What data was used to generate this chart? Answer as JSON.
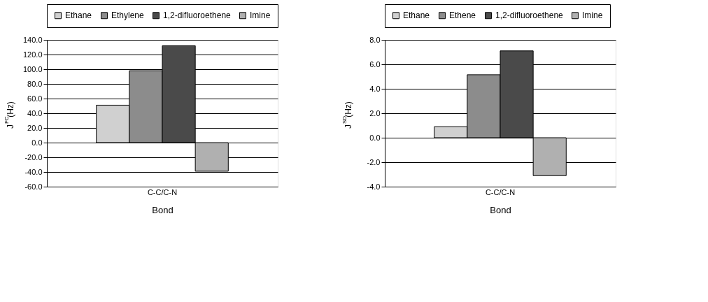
{
  "chart_data": [
    {
      "type": "bar",
      "categories": [
        "C-C/C-N"
      ],
      "xlabel": "Bond",
      "ylabel": "J$^{FC}$(Hz)",
      "ylim": [
        -60,
        140
      ],
      "yticks": [
        {
          "value": -60,
          "label": "-60.0"
        },
        {
          "value": -40,
          "label": "-40.0"
        },
        {
          "value": -20,
          "label": "-20.0"
        },
        {
          "value": 0,
          "label": "0.0"
        },
        {
          "value": 20,
          "label": "20.0"
        },
        {
          "value": 40,
          "label": "40.0"
        },
        {
          "value": 60,
          "label": "60.0"
        },
        {
          "value": 80,
          "label": "80.0"
        },
        {
          "value": 100,
          "label": "100.0"
        },
        {
          "value": 120,
          "label": "120.0"
        },
        {
          "value": 140,
          "label": "140.0"
        }
      ],
      "grid": "y",
      "legend": "top",
      "series": [
        {
          "name": "Ethane",
          "color": "#d0d0d0",
          "values": [
            51
          ]
        },
        {
          "name": "Ethylene",
          "color": "#8c8c8c",
          "values": [
            98
          ]
        },
        {
          "name": "1,2-difluoroethene",
          "color": "#4a4a4a",
          "values": [
            132
          ]
        },
        {
          "name": "Imine",
          "color": "#b0b0b0",
          "values": [
            -39
          ]
        }
      ]
    },
    {
      "type": "bar",
      "categories": [
        "C-C/C-N"
      ],
      "xlabel": "Bond",
      "ylabel": "J$^{SD}$(Hz)",
      "ylim": [
        -4,
        8
      ],
      "yticks": [
        {
          "value": -4,
          "label": "-4.0"
        },
        {
          "value": -2,
          "label": "-2.0"
        },
        {
          "value": 0,
          "label": "0.0"
        },
        {
          "value": 2,
          "label": "2.0"
        },
        {
          "value": 4,
          "label": "4.0"
        },
        {
          "value": 6,
          "label": "6.0"
        },
        {
          "value": 8,
          "label": "8.0"
        }
      ],
      "grid": "y",
      "legend": "top",
      "series": [
        {
          "name": "Ethane",
          "color": "#d0d0d0",
          "values": [
            0.9
          ]
        },
        {
          "name": "Ethene",
          "color": "#8c8c8c",
          "values": [
            5.15
          ]
        },
        {
          "name": "1,2-difluoroethene",
          "color": "#4a4a4a",
          "values": [
            7.1
          ]
        },
        {
          "name": "Imine",
          "color": "#b0b0b0",
          "values": [
            -3.1
          ]
        }
      ]
    }
  ]
}
